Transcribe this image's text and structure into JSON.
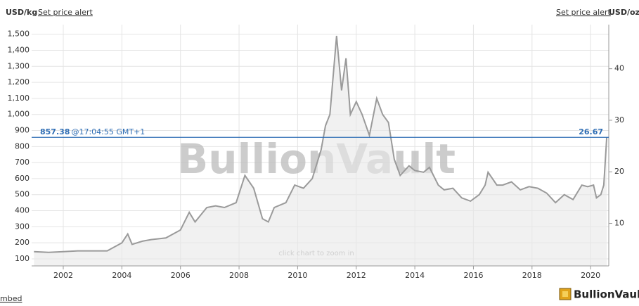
{
  "chart_data": {
    "type": "line",
    "left_unit": "USD/kg",
    "right_unit": "USD/oz",
    "alert_links": [
      "Set price alert",
      "Set price alert"
    ],
    "watermark": "BullionVault",
    "annotation": "click chart to zoom in",
    "current": {
      "value": 857.38,
      "time": "@17:04:55 GMT+1",
      "value_oz": 26.67,
      "color": "#2e6db4"
    },
    "x": [
      2001.0,
      2001.5,
      2002.0,
      2002.5,
      2003.0,
      2003.5,
      2004.0,
      2004.2,
      2004.35,
      2004.7,
      2005.0,
      2005.5,
      2006.0,
      2006.3,
      2006.5,
      2006.9,
      2007.2,
      2007.5,
      2007.9,
      2008.2,
      2008.5,
      2008.8,
      2009.0,
      2009.2,
      2009.6,
      2009.9,
      2010.2,
      2010.5,
      2010.8,
      2010.95,
      2011.1,
      2011.33,
      2011.5,
      2011.65,
      2011.8,
      2012.0,
      2012.2,
      2012.45,
      2012.7,
      2012.9,
      2013.1,
      2013.3,
      2013.5,
      2013.8,
      2014.0,
      2014.3,
      2014.5,
      2014.8,
      2015.0,
      2015.3,
      2015.6,
      2015.9,
      2016.2,
      2016.4,
      2016.5,
      2016.8,
      2017.0,
      2017.3,
      2017.6,
      2017.9,
      2018.2,
      2018.5,
      2018.8,
      2019.1,
      2019.4,
      2019.7,
      2019.9,
      2020.1,
      2020.2,
      2020.35,
      2020.45,
      2020.55
    ],
    "series": [
      {
        "color": "#9a9a9a",
        "values": [
          145,
          140,
          145,
          150,
          150,
          150,
          200,
          255,
          190,
          210,
          220,
          230,
          280,
          390,
          330,
          420,
          430,
          420,
          450,
          620,
          540,
          350,
          330,
          420,
          450,
          560,
          540,
          600,
          780,
          930,
          1000,
          1490,
          1150,
          1350,
          1000,
          1080,
          1000,
          870,
          1100,
          1000,
          950,
          720,
          620,
          680,
          650,
          640,
          670,
          560,
          530,
          540,
          480,
          460,
          500,
          560,
          640,
          560,
          560,
          580,
          530,
          550,
          540,
          510,
          450,
          500,
          470,
          560,
          550,
          560,
          480,
          500,
          560,
          857.38
        ]
      }
    ],
    "xlim": [
      2000.92,
      2020.62
    ],
    "xticks": [
      2002,
      2004,
      2006,
      2008,
      2010,
      2012,
      2014,
      2016,
      2018,
      2020
    ],
    "ylim": [
      56,
      1560
    ],
    "yticks": [
      100,
      200,
      300,
      400,
      500,
      600,
      700,
      800,
      900,
      {
        "value": 1000,
        "label": "1,000"
      },
      {
        "value": 1100,
        "label": "1,100"
      },
      {
        "value": 1200,
        "label": "1,200"
      },
      {
        "value": 1300,
        "label": "1,300"
      },
      {
        "value": 1400,
        "label": "1,400"
      },
      {
        "value": 1500,
        "label": "1,500"
      }
    ],
    "y2lim": [
      1.75,
      48.55
    ],
    "y2ticks": [
      10,
      20,
      30,
      40
    ],
    "grid": true
  },
  "footer": {
    "embed": "mbed",
    "logo": "BullionVault"
  }
}
